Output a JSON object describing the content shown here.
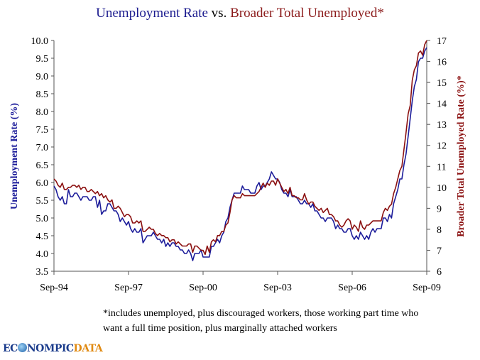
{
  "chart_data": {
    "type": "line",
    "title": {
      "part1": "Unemployment Rate",
      "part2": " vs. ",
      "part3": "Broader Total Unemployed*"
    },
    "xlabel": "",
    "ylabel_left": "Unemployment Rate (%)",
    "ylabel_right": "Broader Total Unemployed Rate (%)*",
    "x_start": "Sep-94",
    "x_end": "Sep-09",
    "x_frequency": "monthly",
    "x_tick_labels": [
      "Sep-94",
      "Sep-97",
      "Sep-00",
      "Sep-03",
      "Sep-06",
      "Sep-09"
    ],
    "ylim_left": [
      3.5,
      10.0
    ],
    "yticks_left": [
      "3.5",
      "4.0",
      "4.5",
      "5.0",
      "5.5",
      "6.0",
      "6.5",
      "7.0",
      "7.5",
      "8.0",
      "8.5",
      "9.0",
      "9.5",
      "10.0"
    ],
    "ylim_right": [
      6,
      17
    ],
    "yticks_right": [
      "6",
      "7",
      "8",
      "9",
      "10",
      "11",
      "12",
      "13",
      "14",
      "15",
      "16",
      "17"
    ],
    "grid": false,
    "legend": "none",
    "series": [
      {
        "axis": "left",
        "color": "#1c1c9a",
        "values": [
          5.9,
          5.8,
          5.6,
          5.5,
          5.6,
          5.4,
          5.4,
          5.8,
          5.6,
          5.6,
          5.7,
          5.7,
          5.6,
          5.5,
          5.6,
          5.6,
          5.6,
          5.5,
          5.5,
          5.6,
          5.6,
          5.3,
          5.5,
          5.1,
          5.2,
          5.2,
          5.4,
          5.4,
          5.3,
          5.2,
          5.2,
          5.1,
          4.9,
          5.0,
          4.9,
          4.8,
          4.9,
          4.7,
          4.6,
          4.7,
          4.6,
          4.6,
          4.7,
          4.3,
          4.4,
          4.5,
          4.5,
          4.5,
          4.6,
          4.5,
          4.4,
          4.4,
          4.3,
          4.4,
          4.2,
          4.3,
          4.2,
          4.3,
          4.3,
          4.2,
          4.2,
          4.1,
          4.1,
          4.0,
          4.0,
          4.1,
          4.0,
          3.8,
          4.0,
          4.0,
          4.0,
          4.1,
          3.9,
          3.9,
          3.9,
          3.9,
          4.2,
          4.2,
          4.3,
          4.4,
          4.3,
          4.5,
          4.6,
          4.9,
          5.0,
          5.3,
          5.5,
          5.7,
          5.7,
          5.7,
          5.7,
          5.9,
          5.8,
          5.8,
          5.8,
          5.7,
          5.7,
          5.7,
          5.9,
          6.0,
          5.8,
          5.9,
          5.9,
          6.0,
          6.1,
          6.3,
          6.2,
          6.1,
          6.1,
          6.0,
          5.8,
          5.7,
          5.7,
          5.6,
          5.8,
          5.6,
          5.6,
          5.6,
          5.5,
          5.4,
          5.4,
          5.5,
          5.4,
          5.4,
          5.3,
          5.4,
          5.2,
          5.2,
          5.1,
          5.0,
          5.0,
          4.9,
          5.0,
          5.0,
          5.0,
          4.9,
          4.7,
          4.8,
          4.7,
          4.7,
          4.6,
          4.6,
          4.7,
          4.7,
          4.5,
          4.4,
          4.5,
          4.4,
          4.6,
          4.5,
          4.4,
          4.5,
          4.4,
          4.6,
          4.7,
          4.6,
          4.7,
          4.7,
          4.7,
          5.0,
          5.0,
          4.9,
          5.1,
          5.0,
          5.4,
          5.6,
          5.8,
          6.1,
          6.1,
          6.5,
          6.8,
          7.3,
          7.8,
          8.3,
          8.7,
          8.9,
          9.4,
          9.5,
          9.5,
          9.7,
          9.8
        ]
      },
      {
        "axis": "right",
        "color": "#8b1010",
        "values": [
          10.4,
          10.3,
          10.1,
          10.0,
          10.2,
          9.9,
          9.9,
          10.0,
          10.0,
          10.1,
          10.1,
          10.0,
          10.1,
          9.9,
          10.0,
          10.0,
          9.8,
          9.8,
          9.9,
          9.8,
          9.7,
          9.8,
          9.6,
          9.7,
          9.5,
          9.6,
          9.4,
          9.3,
          9.4,
          9.0,
          9.0,
          9.1,
          9.0,
          8.8,
          8.6,
          8.7,
          8.7,
          8.6,
          8.3,
          8.3,
          8.4,
          8.3,
          8.4,
          7.9,
          7.9,
          8.0,
          8.1,
          8.0,
          8.0,
          7.8,
          7.7,
          7.8,
          7.7,
          7.7,
          7.6,
          7.6,
          7.4,
          7.5,
          7.5,
          7.3,
          7.4,
          7.3,
          7.2,
          7.2,
          7.2,
          7.3,
          7.3,
          6.9,
          7.2,
          7.2,
          7.1,
          7.0,
          7.0,
          6.8,
          7.2,
          6.9,
          7.4,
          7.5,
          7.4,
          7.7,
          7.7,
          7.9,
          7.9,
          8.2,
          8.3,
          8.8,
          9.4,
          9.6,
          9.5,
          9.5,
          9.5,
          9.7,
          9.6,
          9.6,
          9.6,
          9.6,
          9.6,
          9.6,
          9.7,
          9.8,
          10.0,
          10.2,
          10.0,
          10.2,
          10.1,
          10.3,
          10.3,
          10.1,
          10.4,
          10.2,
          10.0,
          9.8,
          9.9,
          9.7,
          10.0,
          9.6,
          9.6,
          9.5,
          9.5,
          9.4,
          9.4,
          9.7,
          9.4,
          9.2,
          9.3,
          9.3,
          9.1,
          9.0,
          8.9,
          9.0,
          8.8,
          8.9,
          9.0,
          8.7,
          8.7,
          8.6,
          8.4,
          8.4,
          8.2,
          8.1,
          8.2,
          8.4,
          8.5,
          8.4,
          8.0,
          8.2,
          8.1,
          7.9,
          8.4,
          8.1,
          8.0,
          8.2,
          8.2,
          8.3,
          8.4,
          8.4,
          8.4,
          8.4,
          8.4,
          8.8,
          9.0,
          8.9,
          9.1,
          9.2,
          9.7,
          10.0,
          10.4,
          10.8,
          11.0,
          11.8,
          12.6,
          13.5,
          13.9,
          15.1,
          15.6,
          15.8,
          16.4,
          16.5,
          16.3,
          16.8,
          17.0
        ]
      }
    ]
  },
  "footnote": {
    "line1": "*includes unemployed, plus discouraged workers, those working part time who",
    "line2": "want a full time position, plus marginally attached workers"
  },
  "logo": {
    "part1": "EC",
    "part2": "NOMPIC",
    "part3": "DATA"
  }
}
